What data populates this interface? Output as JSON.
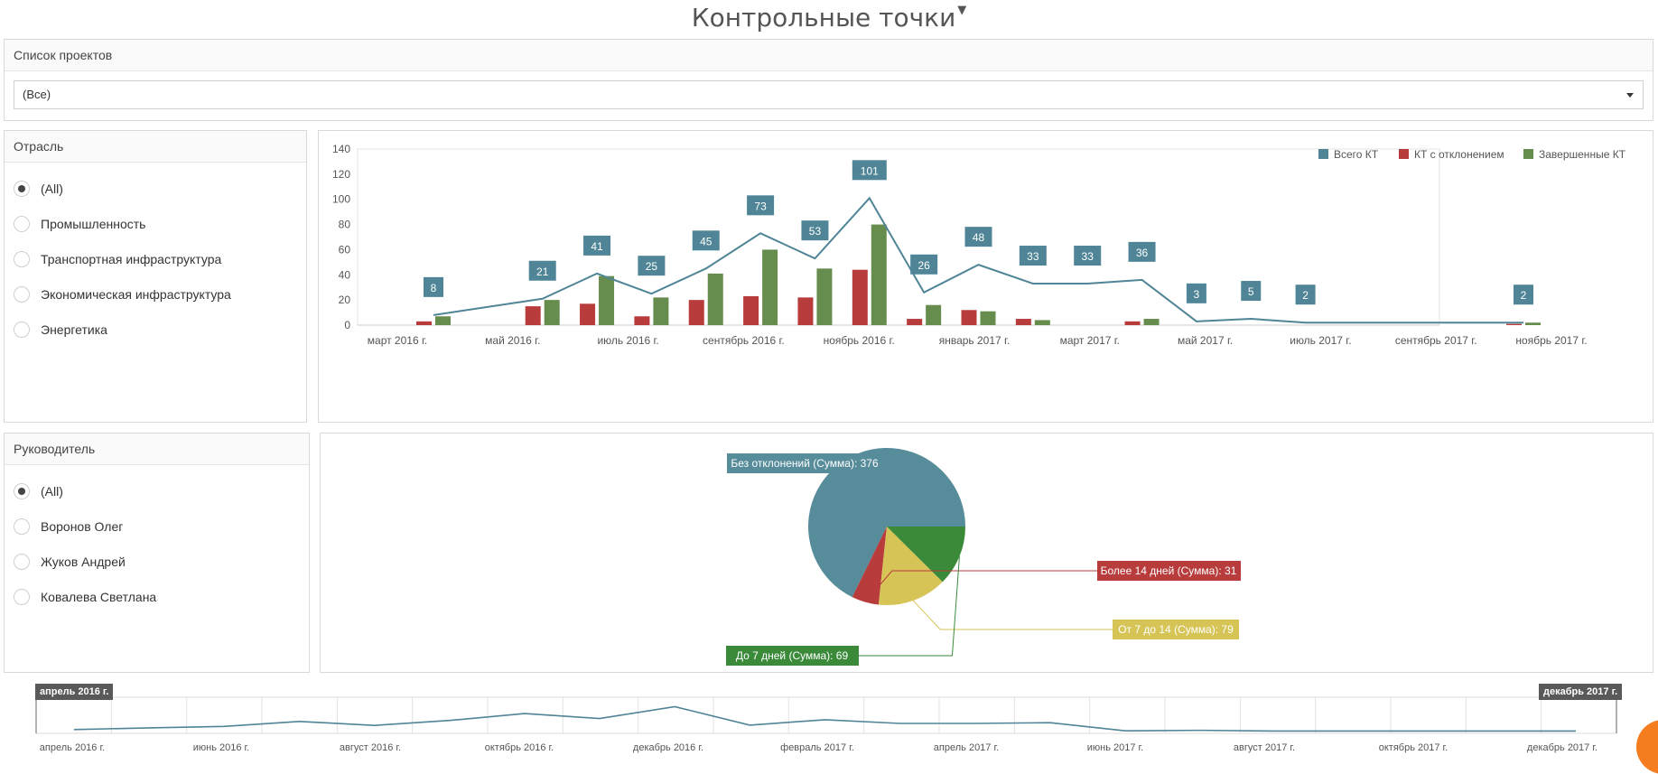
{
  "page": {
    "title": "Контрольные точки",
    "filter_icon": "filter-icon"
  },
  "projects": {
    "header": "Список проектов",
    "selected": "(Все)"
  },
  "industry": {
    "header": "Отрасль",
    "options": [
      "(All)",
      "Промышленность",
      "Транспортная инфраструктура",
      "Экономическая инфраструктура",
      "Энергетика"
    ],
    "selected_index": 0
  },
  "manager": {
    "header": "Руководитель",
    "options": [
      "(All)",
      "Воронов Олег",
      "Жуков Андрей",
      "Ковалева Светлана"
    ],
    "selected_index": 0
  },
  "colors": {
    "total": "#4f8596",
    "deviation": "#b83c3c",
    "completed": "#678d4e",
    "yellow": "#d6c457",
    "pie_green": "#3a8a3a"
  },
  "chart_data": [
    {
      "type": "bar",
      "title": "",
      "legend": [
        "Всего КТ",
        "КТ с отклонением",
        "Завершенные КТ"
      ],
      "legend_position": "top-right",
      "ylim": [
        0,
        140
      ],
      "yticks": [
        0,
        20,
        40,
        60,
        80,
        100,
        120,
        140
      ],
      "x_tick_labels": [
        "март 2016 г.",
        "май 2016 г.",
        "июль 2016 г.",
        "сентябрь 2016 г.",
        "ноябрь 2016 г.",
        "январь 2017 г.",
        "март 2017 г.",
        "май 2017 г.",
        "июль 2017 г.",
        "сентябрь 2017 г.",
        "ноябрь 2017 г."
      ],
      "categories": [
        "апр 2016",
        "май 2016",
        "июн 2016",
        "июл 2016",
        "авг 2016",
        "сен 2016",
        "окт 2016",
        "ноя 2016",
        "дек 2016",
        "янв 2017",
        "фев 2017",
        "мар 2017",
        "апр 2017",
        "май 2017",
        "июн 2017",
        "июл 2017",
        "авг 2017",
        "сен 2017",
        "окт 2017",
        "ноя 2017",
        "дек 2017"
      ],
      "series": [
        {
          "name": "Всего КТ",
          "kind": "line",
          "values": [
            8,
            null,
            21,
            41,
            25,
            45,
            73,
            53,
            101,
            26,
            48,
            33,
            33,
            36,
            3,
            5,
            2,
            null,
            null,
            null,
            2
          ],
          "labels": [
            "8",
            "",
            "21",
            "41",
            "25",
            "45",
            "73",
            "53",
            "101",
            "26",
            "48",
            "33",
            "33",
            "36",
            "3",
            "5",
            "2",
            "",
            "",
            "",
            "2"
          ]
        },
        {
          "name": "КТ с отклонением",
          "kind": "bar",
          "values": [
            3,
            0,
            15,
            17,
            7,
            20,
            23,
            22,
            44,
            5,
            12,
            5,
            0,
            3,
            0,
            0,
            0,
            0,
            0,
            0,
            1
          ]
        },
        {
          "name": "Завершенные КТ",
          "kind": "bar",
          "values": [
            7,
            0,
            20,
            39,
            22,
            41,
            60,
            45,
            80,
            16,
            11,
            4,
            0,
            5,
            0,
            0,
            0,
            0,
            0,
            0,
            2
          ]
        }
      ]
    },
    {
      "type": "pie",
      "slices": [
        {
          "label": "Без отклонений (Сумма): 376",
          "value": 376,
          "color": "#578c9b"
        },
        {
          "label": "Более 14 дней (Сумма): 31",
          "value": 31,
          "color": "#b83c3c"
        },
        {
          "label": "От 7 до 14 (Сумма): 79",
          "value": 79,
          "color": "#d6c457"
        },
        {
          "label": "До 7 дней (Сумма): 69",
          "value": 69,
          "color": "#3a8a3a"
        }
      ]
    },
    {
      "type": "line",
      "name": "timeline",
      "range_start": "апрель 2016 г.",
      "range_end": "декабрь 2017 г.",
      "x_tick_labels": [
        "апрель 2016 г.",
        "июнь 2016 г.",
        "август 2016 г.",
        "октябрь 2016 г.",
        "декабрь 2016 г.",
        "февраль 2017 г.",
        "апрель 2017 г.",
        "июнь 2017 г.",
        "август 2017 г.",
        "октябрь 2017 г.",
        "декабрь 2017 г."
      ],
      "values": [
        8,
        15,
        21,
        41,
        25,
        45,
        73,
        53,
        101,
        26,
        48,
        33,
        33,
        36,
        3,
        5,
        2,
        2,
        2,
        2,
        2
      ]
    }
  ]
}
